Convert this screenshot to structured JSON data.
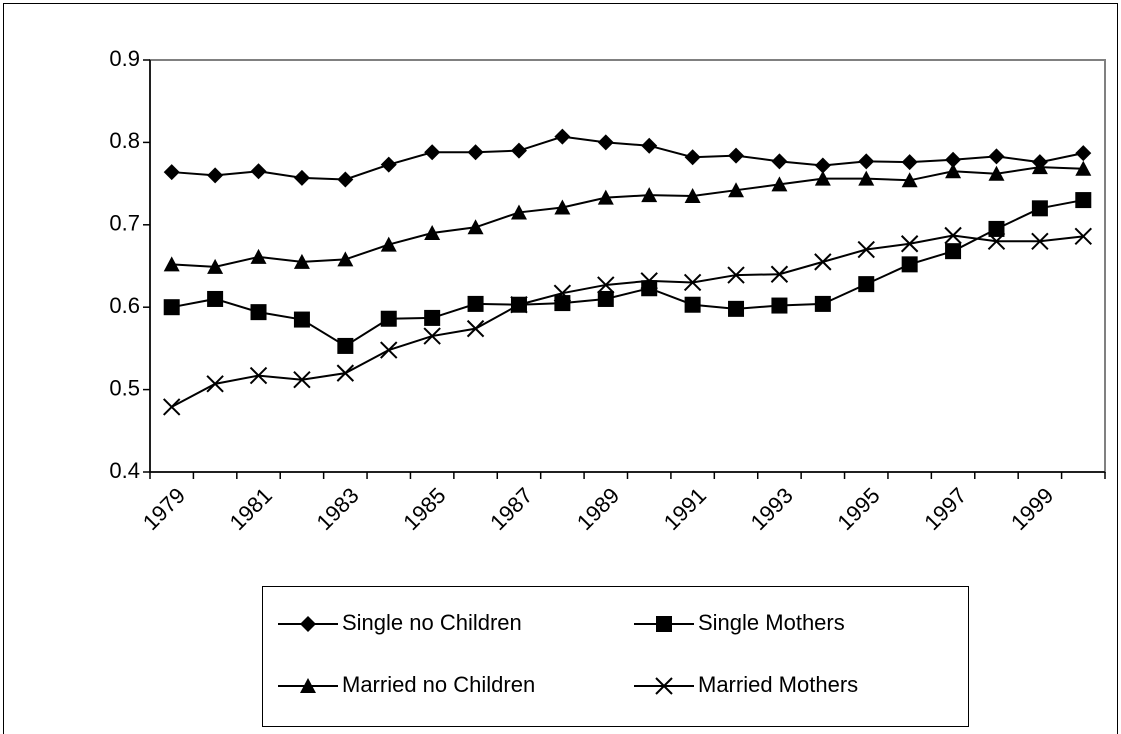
{
  "chart_data": {
    "type": "line",
    "categories": [
      "1979",
      null,
      "1981",
      null,
      "1983",
      null,
      "1985",
      null,
      "1987",
      null,
      "1989",
      null,
      "1991",
      null,
      "1993",
      null,
      "1995",
      null,
      "1997",
      null,
      "1999",
      null
    ],
    "ylim": [
      0.4,
      0.9
    ],
    "yticks": [
      0.4,
      0.5,
      0.6,
      0.7,
      0.8,
      0.9
    ],
    "grid": false,
    "series": [
      {
        "name": "Single no Children",
        "color": "#000000",
        "marker": "diamond",
        "values": [
          0.764,
          0.76,
          0.765,
          0.757,
          0.755,
          0.773,
          0.788,
          0.788,
          0.79,
          0.807,
          0.8,
          0.796,
          0.782,
          0.784,
          0.777,
          0.772,
          0.777,
          0.776,
          0.779,
          0.783,
          0.776,
          0.787
        ]
      },
      {
        "name": "Single Mothers",
        "color": "#000000",
        "marker": "square",
        "values": [
          0.6,
          0.61,
          0.594,
          0.585,
          0.553,
          0.586,
          0.587,
          0.604,
          0.603,
          0.605,
          0.61,
          0.623,
          0.603,
          0.598,
          0.602,
          0.604,
          0.628,
          0.652,
          0.668,
          0.695,
          0.72,
          0.73
        ]
      },
      {
        "name": "Married no Children",
        "color": "#000000",
        "marker": "triangle",
        "values": [
          0.652,
          0.649,
          0.661,
          0.655,
          0.658,
          0.676,
          0.69,
          0.697,
          0.715,
          0.721,
          0.733,
          0.736,
          0.735,
          0.742,
          0.749,
          0.756,
          0.756,
          0.754,
          0.765,
          0.762,
          0.77,
          0.768
        ]
      },
      {
        "name": "Married Mothers",
        "color": "#000000",
        "marker": "x",
        "values": [
          0.479,
          0.507,
          0.517,
          0.512,
          0.52,
          0.548,
          0.565,
          0.574,
          0.603,
          0.617,
          0.627,
          0.632,
          0.63,
          0.639,
          0.64,
          0.655,
          0.67,
          0.677,
          0.687,
          0.68,
          0.68,
          0.686
        ]
      }
    ]
  }
}
